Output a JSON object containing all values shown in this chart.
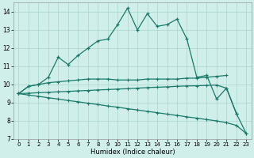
{
  "xlabel": "Humidex (Indice chaleur)",
  "bg_color": "#d0eeea",
  "grid_color": "#aad4cc",
  "line_color": "#1a7a6a",
  "xlim_min": -0.5,
  "xlim_max": 23.5,
  "ylim_min": 7,
  "ylim_max": 14.5,
  "xticks": [
    0,
    1,
    2,
    3,
    4,
    5,
    6,
    7,
    8,
    9,
    10,
    11,
    12,
    13,
    14,
    15,
    16,
    17,
    18,
    19,
    20,
    21,
    22,
    23
  ],
  "yticks": [
    7,
    8,
    9,
    10,
    11,
    12,
    13,
    14
  ],
  "s1_x": [
    0,
    1,
    2,
    3,
    4,
    5,
    6,
    7,
    8,
    9,
    10,
    11,
    12,
    13,
    14,
    15,
    16,
    17,
    18,
    19,
    20,
    21,
    22
  ],
  "s1_y": [
    9.5,
    9.9,
    10.0,
    10.4,
    11.5,
    11.1,
    11.6,
    12.0,
    12.4,
    12.5,
    13.3,
    14.2,
    13.0,
    13.9,
    13.2,
    13.3,
    13.6,
    12.5,
    10.4,
    10.5,
    9.2,
    9.8,
    8.4
  ],
  "s2_x": [
    0,
    1,
    2,
    3,
    4,
    5,
    6,
    7,
    8,
    9,
    10,
    11,
    12,
    13,
    14,
    15,
    16,
    17,
    18,
    19,
    20,
    21
  ],
  "s2_y": [
    9.5,
    9.9,
    10.0,
    10.1,
    10.15,
    10.2,
    10.25,
    10.3,
    10.3,
    10.3,
    10.25,
    10.25,
    10.25,
    10.3,
    10.3,
    10.3,
    10.3,
    10.35,
    10.35,
    10.4,
    10.45,
    10.5
  ],
  "s3_x": [
    0,
    1,
    2,
    3,
    4,
    5,
    6,
    7,
    8,
    9,
    10,
    11,
    12,
    13,
    14,
    15,
    16,
    17,
    18,
    19,
    20,
    21,
    22,
    23
  ],
  "s3_y": [
    9.5,
    9.42,
    9.35,
    9.27,
    9.2,
    9.12,
    9.05,
    8.97,
    8.9,
    8.82,
    8.75,
    8.67,
    8.6,
    8.52,
    8.45,
    8.37,
    8.3,
    8.22,
    8.15,
    8.07,
    8.0,
    7.9,
    7.75,
    7.3
  ],
  "s4_x": [
    0,
    1,
    2,
    3,
    4,
    5,
    6,
    7,
    8,
    9,
    10,
    11,
    12,
    13,
    14,
    15,
    16,
    17,
    18,
    19,
    20,
    21,
    22,
    23
  ],
  "s4_y": [
    9.5,
    9.52,
    9.55,
    9.57,
    9.6,
    9.62,
    9.65,
    9.67,
    9.7,
    9.72,
    9.75,
    9.77,
    9.8,
    9.83,
    9.85,
    9.87,
    9.9,
    9.92,
    9.93,
    9.95,
    9.97,
    9.8,
    8.4,
    7.3
  ]
}
